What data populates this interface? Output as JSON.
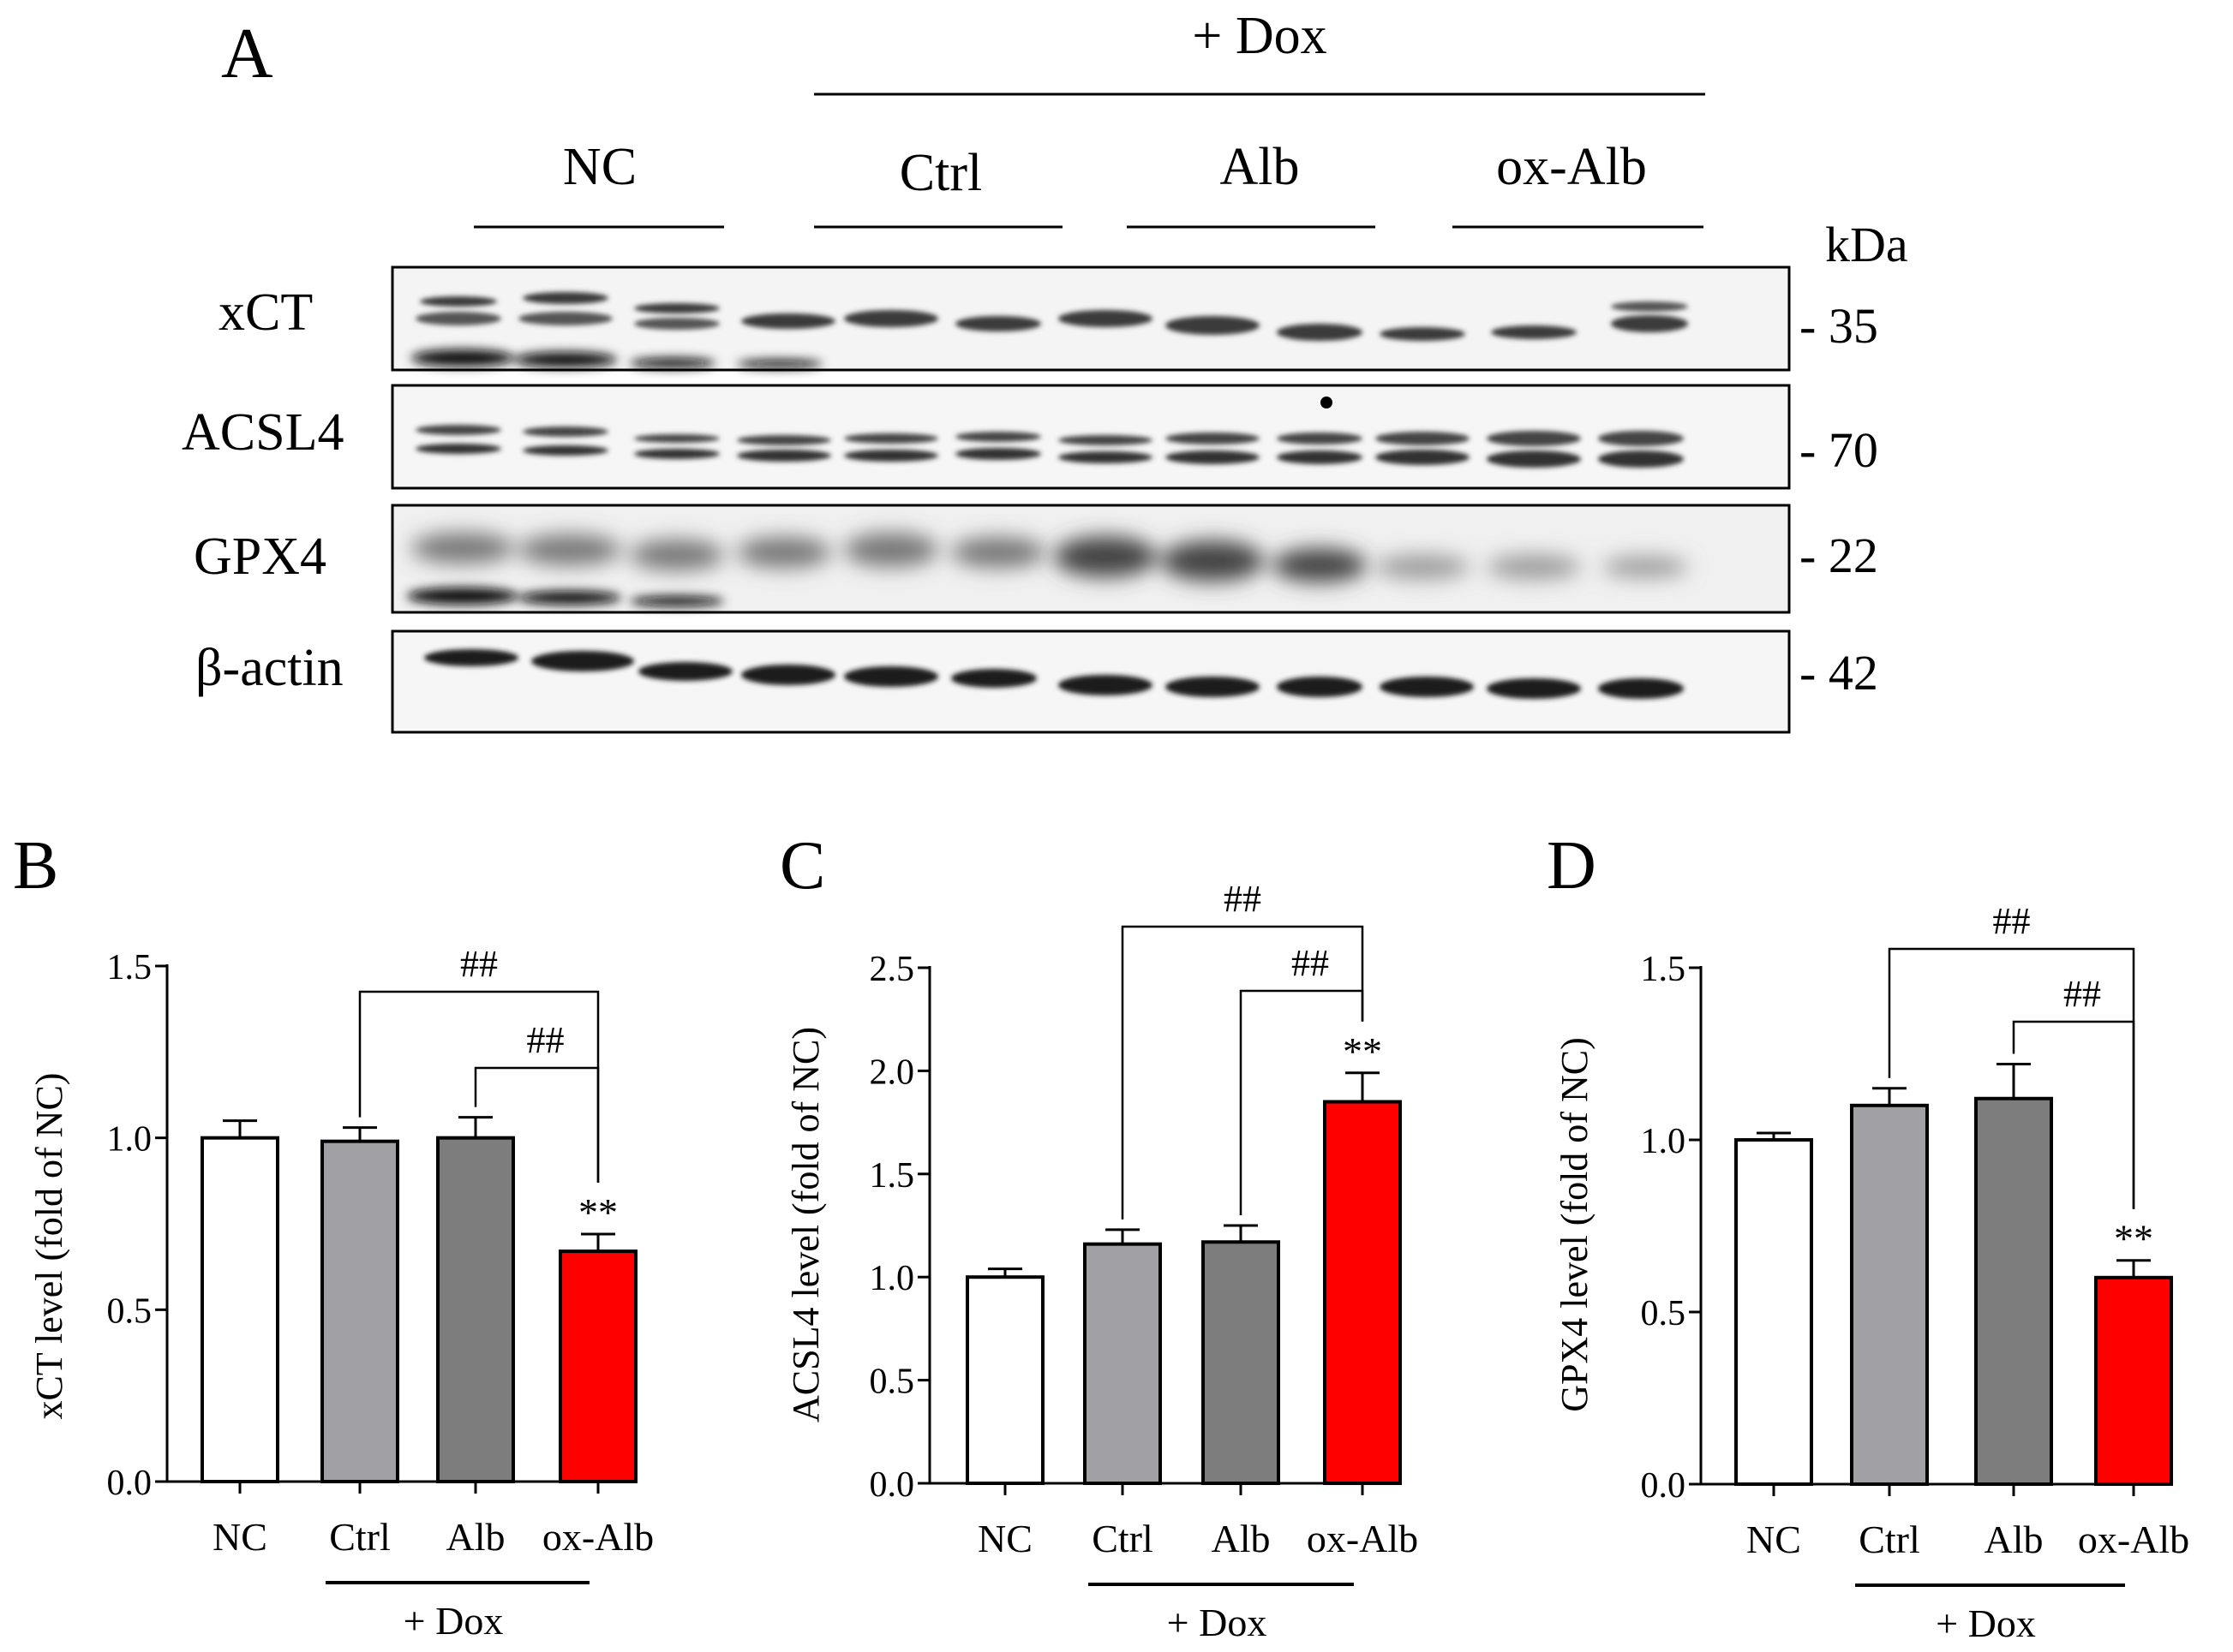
{
  "panel_a": {
    "label": "A",
    "dox_label": "+ Dox",
    "groups": [
      "NC",
      "Ctrl",
      "Alb",
      "ox-Alb"
    ],
    "kda_label": "kDa",
    "blots": [
      {
        "name": "xCT",
        "kda": "- 35"
      },
      {
        "name": "ACSL4",
        "kda": "- 70"
      },
      {
        "name": "GPX4",
        "kda": "- 22"
      },
      {
        "name": "β-actin",
        "kda": "- 42"
      }
    ]
  },
  "chart_data": [
    {
      "panel": "B",
      "type": "bar",
      "categories": [
        "NC",
        "Ctrl",
        "Alb",
        "ox-Alb"
      ],
      "values": [
        1.0,
        0.99,
        1.0,
        0.67
      ],
      "errors": [
        0.05,
        0.04,
        0.06,
        0.05
      ],
      "colors": [
        "#ffffff",
        "#a0a0a5",
        "#7d7d7d",
        "#ff0000"
      ],
      "ylabel": "xCT level (fold of NC)",
      "ylim": [
        0,
        1.5
      ],
      "yticks": [
        "0.0",
        "0.5",
        "1.0",
        "1.5"
      ],
      "dox_label": "+ Dox",
      "significance": "**",
      "brackets": [
        {
          "from": "Ctrl",
          "to": "ox-Alb",
          "label": "##"
        },
        {
          "from": "Alb",
          "to": "ox-Alb",
          "label": "##"
        }
      ]
    },
    {
      "panel": "C",
      "type": "bar",
      "categories": [
        "NC",
        "Ctrl",
        "Alb",
        "ox-Alb"
      ],
      "values": [
        1.0,
        1.16,
        1.17,
        1.85
      ],
      "errors": [
        0.04,
        0.07,
        0.08,
        0.14
      ],
      "colors": [
        "#ffffff",
        "#a0a0a5",
        "#7d7d7d",
        "#ff0000"
      ],
      "ylabel": "ACSL4 level (fold of NC)",
      "ylim": [
        0,
        2.5
      ],
      "yticks": [
        "0.0",
        "0.5",
        "1.0",
        "1.5",
        "2.0",
        "2.5"
      ],
      "dox_label": "+ Dox",
      "significance": "**",
      "brackets": [
        {
          "from": "Ctrl",
          "to": "ox-Alb",
          "label": "##"
        },
        {
          "from": "Alb",
          "to": "ox-Alb",
          "label": "##"
        }
      ]
    },
    {
      "panel": "D",
      "type": "bar",
      "categories": [
        "NC",
        "Ctrl",
        "Alb",
        "ox-Alb"
      ],
      "values": [
        1.0,
        1.1,
        1.12,
        0.6
      ],
      "errors": [
        0.02,
        0.05,
        0.1,
        0.05
      ],
      "colors": [
        "#ffffff",
        "#a0a0a5",
        "#7d7d7d",
        "#ff0000"
      ],
      "ylabel": "GPX4 level (fold of NC)",
      "ylim": [
        0,
        1.5
      ],
      "yticks": [
        "0.0",
        "0.5",
        "1.0",
        "1.5"
      ],
      "dox_label": "+ Dox",
      "significance": "**",
      "brackets": [
        {
          "from": "Ctrl",
          "to": "ox-Alb",
          "label": "##"
        },
        {
          "from": "Alb",
          "to": "ox-Alb",
          "label": "##"
        }
      ]
    }
  ]
}
